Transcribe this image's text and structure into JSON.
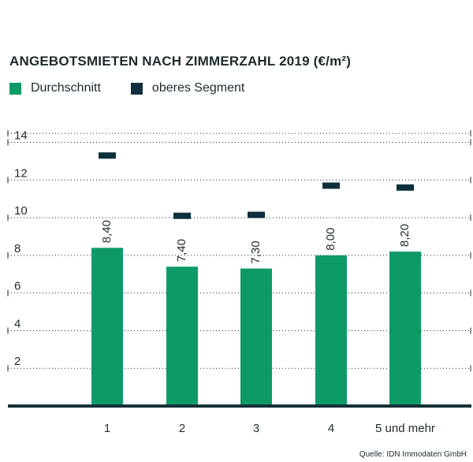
{
  "title": "ANGEBOTSMIETEN NACH ZIMMERZAHL 2019 (€/m²)",
  "legend": [
    {
      "label": "Durchschnitt",
      "color": "#0e9a67"
    },
    {
      "label": "oberes Segment",
      "color": "#0f2f3c"
    }
  ],
  "source": "Quelle: IDN Immodaten GmbH",
  "chart_data": {
    "type": "bar",
    "categories": [
      "1",
      "2",
      "3",
      "4",
      "5 und mehr"
    ],
    "series": [
      {
        "name": "Durchschnitt",
        "values": [
          8.4,
          7.4,
          7.3,
          8.0,
          8.2
        ],
        "labels": [
          "8,40",
          "7,40",
          "7,30",
          "8,00",
          "8,20"
        ],
        "color": "#0e9a67"
      },
      {
        "name": "oberes Segment",
        "values": [
          13.3,
          10.1,
          10.15,
          11.7,
          11.6
        ],
        "color": "#0f2f3c",
        "marker": "dash"
      }
    ],
    "yticks": [
      "2",
      "4",
      "6",
      "8",
      "10",
      "12",
      "14"
    ],
    "ylim": [
      0,
      14.4
    ],
    "grid": "dotted",
    "legend_position": "top-left"
  }
}
